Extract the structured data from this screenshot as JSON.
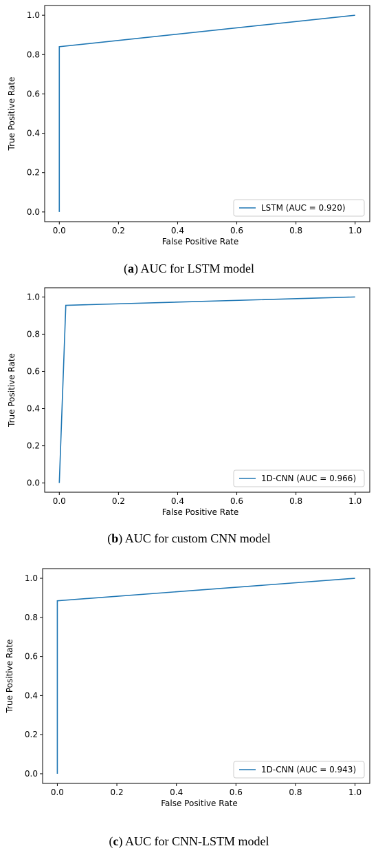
{
  "chart_data": [
    {
      "type": "line",
      "panel": "a",
      "xlabel": "False Positive Rate",
      "ylabel": "True Positive Rate",
      "xlim": [
        0,
        1
      ],
      "ylim": [
        0,
        1
      ],
      "xticks": [
        "0.0",
        "0.2",
        "0.4",
        "0.6",
        "0.8",
        "1.0"
      ],
      "yticks": [
        "0.0",
        "0.2",
        "0.4",
        "0.6",
        "0.8",
        "1.0"
      ],
      "grid": false,
      "legend_position": "lower-right",
      "series": [
        {
          "name": "LSTM (AUC = 0.920)",
          "color": "#1f77b4",
          "x": [
            0,
            0,
            1
          ],
          "y": [
            0,
            0.84,
            1
          ]
        }
      ]
    },
    {
      "type": "line",
      "panel": "b",
      "xlabel": "False Positive Rate",
      "ylabel": "True Positive Rate",
      "xlim": [
        0,
        1
      ],
      "ylim": [
        0,
        1
      ],
      "xticks": [
        "0.0",
        "0.2",
        "0.4",
        "0.6",
        "0.8",
        "1.0"
      ],
      "yticks": [
        "0.0",
        "0.2",
        "0.4",
        "0.6",
        "0.8",
        "1.0"
      ],
      "grid": false,
      "legend_position": "lower-right",
      "series": [
        {
          "name": "1D-CNN (AUC = 0.966)",
          "color": "#1f77b4",
          "x": [
            0,
            0.022,
            1
          ],
          "y": [
            0,
            0.955,
            1
          ]
        }
      ]
    },
    {
      "type": "line",
      "panel": "c",
      "xlabel": "False Positive Rate",
      "ylabel": "True Positive Rate",
      "xlim": [
        0,
        1
      ],
      "ylim": [
        0,
        1
      ],
      "xticks": [
        "0.0",
        "0.2",
        "0.4",
        "0.6",
        "0.8",
        "1.0"
      ],
      "yticks": [
        "0.0",
        "0.2",
        "0.4",
        "0.6",
        "0.8",
        "1.0"
      ],
      "grid": false,
      "legend_position": "lower-right",
      "series": [
        {
          "name": "1D-CNN (AUC = 0.943)",
          "color": "#1f77b4",
          "x": [
            0,
            0,
            1
          ],
          "y": [
            0,
            0.885,
            1
          ]
        }
      ]
    }
  ],
  "captions": [
    {
      "letter": "a",
      "text": "AUC for LSTM model"
    },
    {
      "letter": "b",
      "text": "AUC for custom CNN model"
    },
    {
      "letter": "c",
      "text": "AUC for CNN-LSTM model"
    }
  ]
}
